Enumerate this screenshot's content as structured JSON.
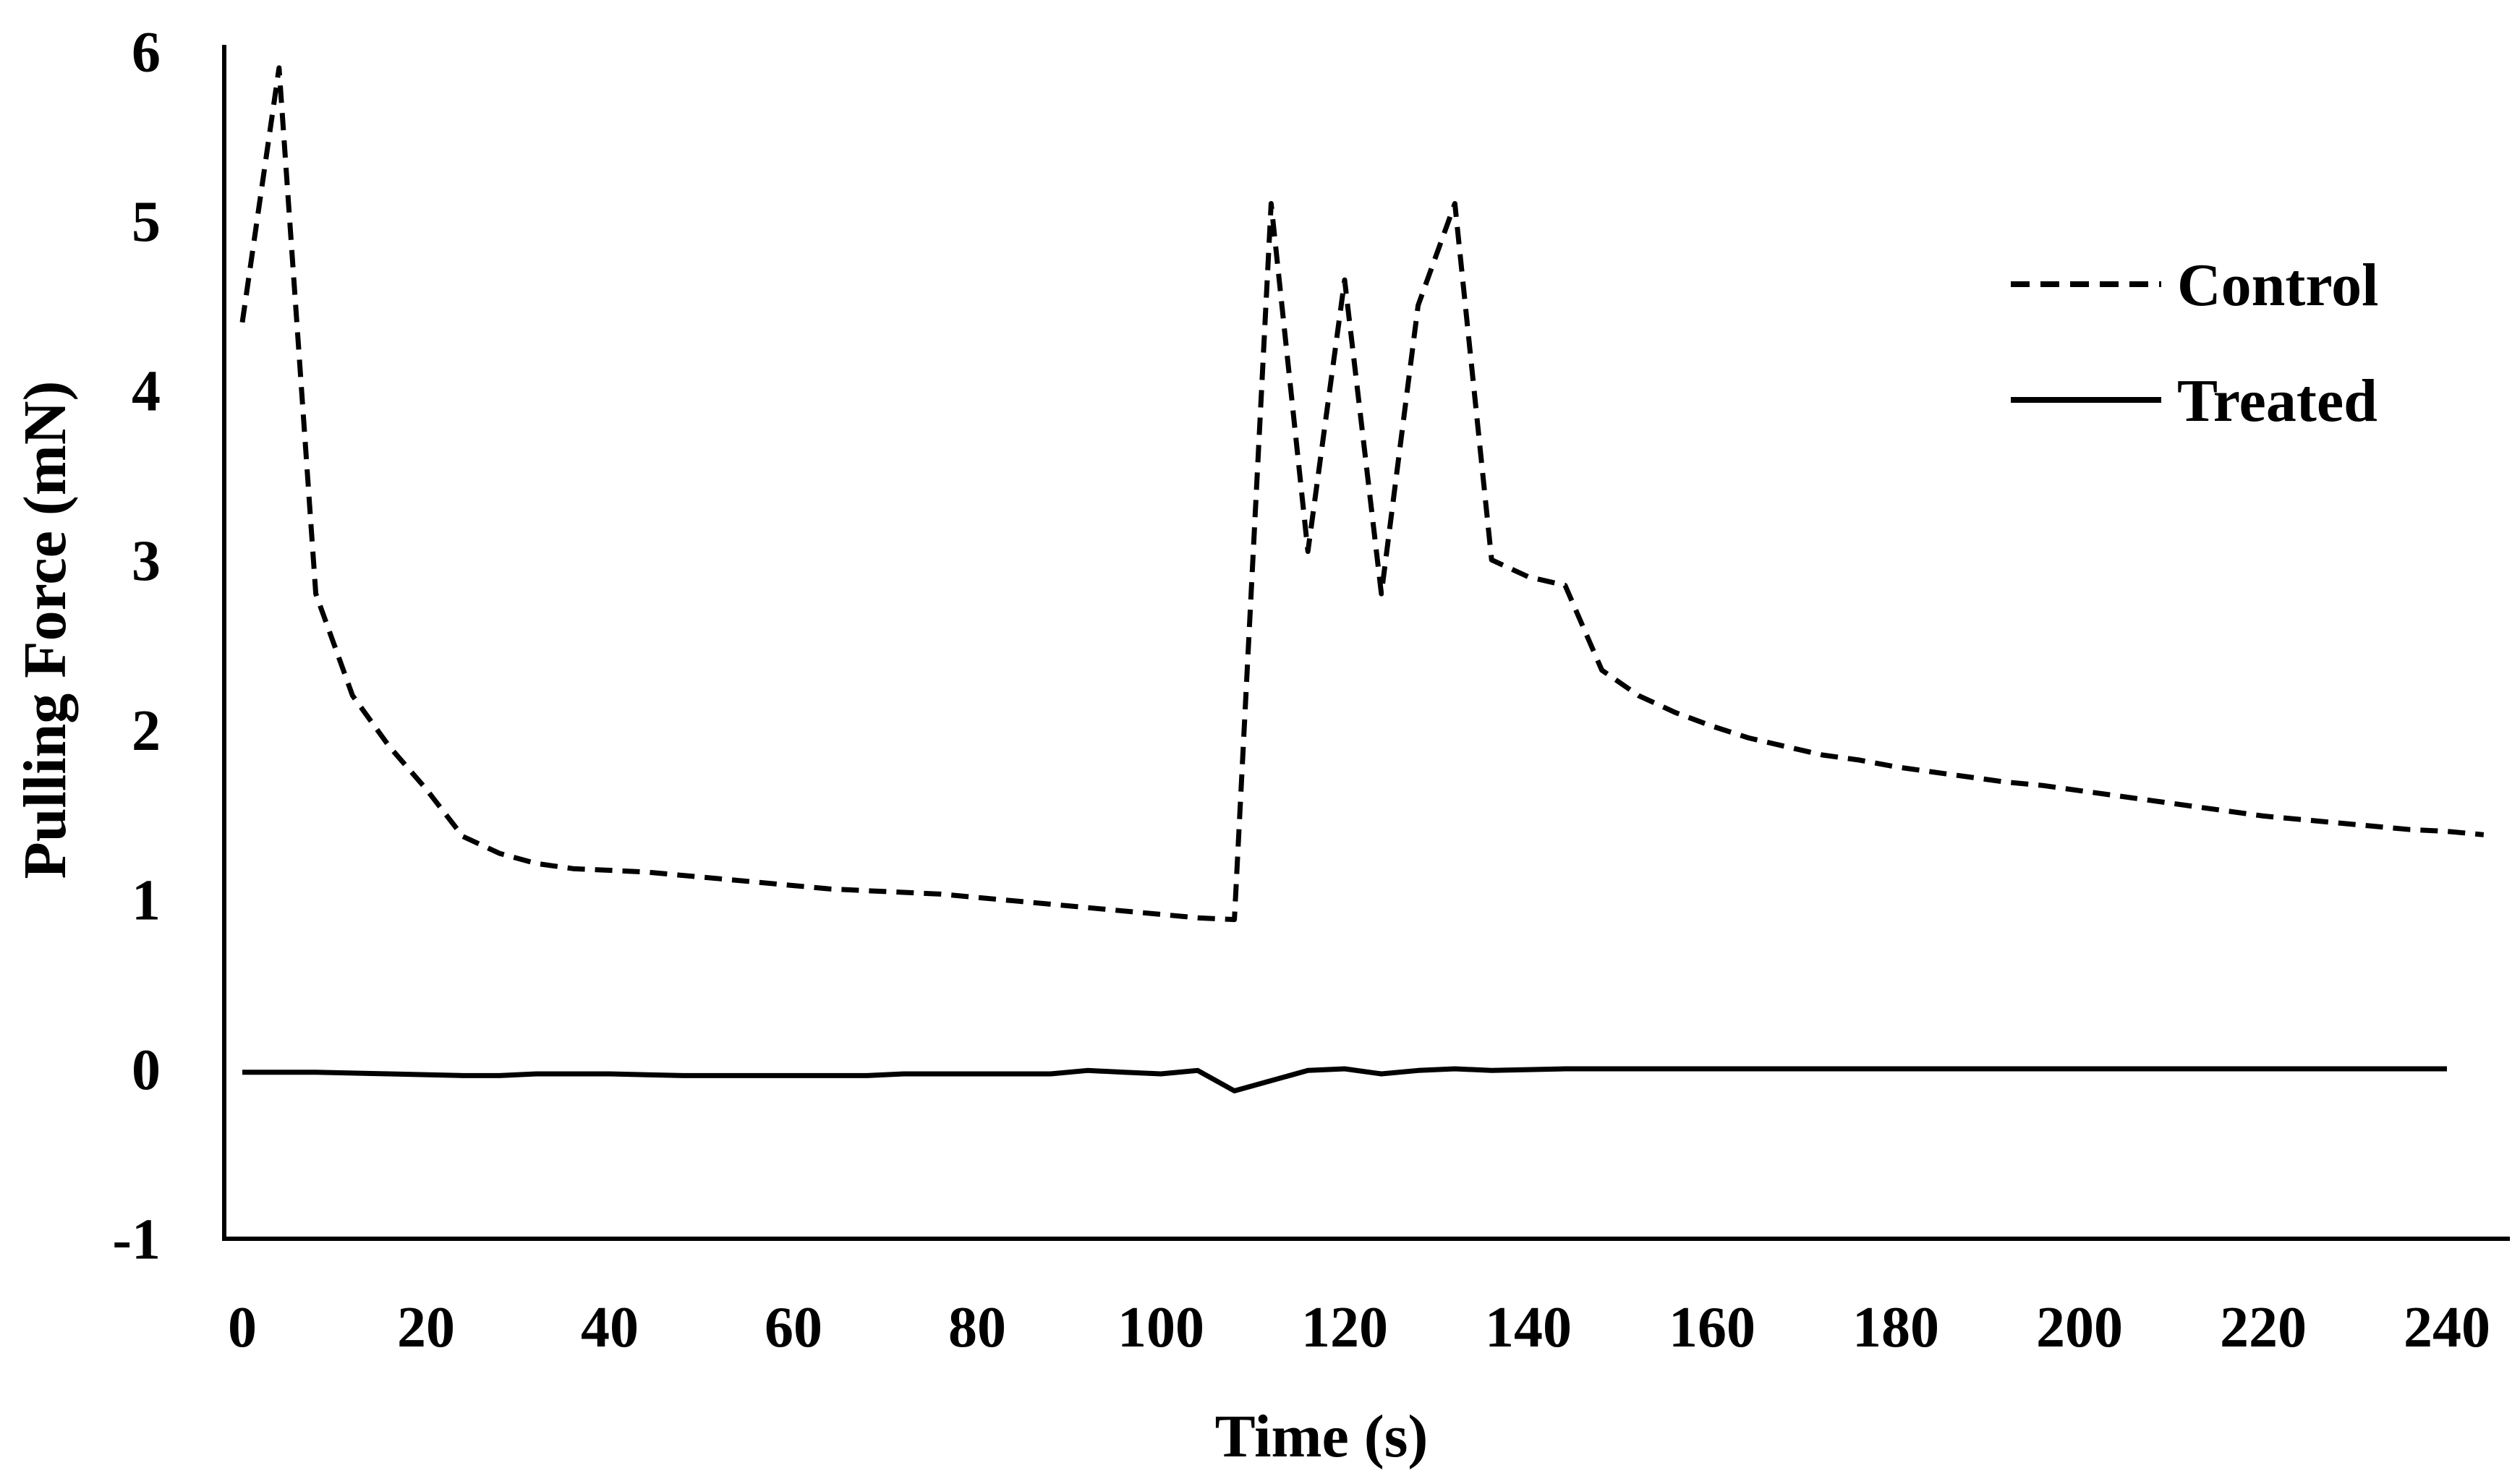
{
  "chart_data": {
    "type": "line",
    "title": "",
    "xlabel": "Time (s)",
    "ylabel": "Pulling Force (mN)",
    "xlim": [
      -4,
      245
    ],
    "ylim": [
      -1,
      6
    ],
    "xticks": [
      0,
      20,
      40,
      60,
      80,
      100,
      120,
      140,
      160,
      180,
      200,
      220,
      240
    ],
    "yticks": [
      -1,
      0,
      1,
      2,
      3,
      4,
      5,
      6
    ],
    "grid": false,
    "legend_position": "top-right",
    "series": [
      {
        "name": "Control",
        "style": "dashed",
        "color": "#000000",
        "points": [
          [
            0,
            4.4
          ],
          [
            4,
            5.9
          ],
          [
            8,
            2.8
          ],
          [
            12,
            2.2
          ],
          [
            16,
            1.9
          ],
          [
            20,
            1.65
          ],
          [
            24,
            1.37
          ],
          [
            28,
            1.27
          ],
          [
            32,
            1.21
          ],
          [
            36,
            1.18
          ],
          [
            40,
            1.17
          ],
          [
            44,
            1.16
          ],
          [
            48,
            1.14
          ],
          [
            52,
            1.12
          ],
          [
            56,
            1.1
          ],
          [
            60,
            1.08
          ],
          [
            64,
            1.06
          ],
          [
            68,
            1.05
          ],
          [
            72,
            1.04
          ],
          [
            76,
            1.03
          ],
          [
            80,
            1.01
          ],
          [
            84,
            0.99
          ],
          [
            88,
            0.97
          ],
          [
            92,
            0.95
          ],
          [
            96,
            0.93
          ],
          [
            100,
            0.91
          ],
          [
            104,
            0.89
          ],
          [
            108,
            0.88
          ],
          [
            112,
            5.1
          ],
          [
            116,
            3.05
          ],
          [
            120,
            4.65
          ],
          [
            124,
            2.8
          ],
          [
            128,
            4.5
          ],
          [
            132,
            5.1
          ],
          [
            136,
            3.0
          ],
          [
            140,
            2.9
          ],
          [
            144,
            2.85
          ],
          [
            148,
            2.35
          ],
          [
            152,
            2.2
          ],
          [
            156,
            2.1
          ],
          [
            160,
            2.02
          ],
          [
            164,
            1.95
          ],
          [
            168,
            1.9
          ],
          [
            172,
            1.85
          ],
          [
            176,
            1.82
          ],
          [
            180,
            1.78
          ],
          [
            184,
            1.75
          ],
          [
            188,
            1.72
          ],
          [
            192,
            1.69
          ],
          [
            196,
            1.67
          ],
          [
            200,
            1.64
          ],
          [
            204,
            1.61
          ],
          [
            208,
            1.58
          ],
          [
            212,
            1.55
          ],
          [
            216,
            1.52
          ],
          [
            220,
            1.49
          ],
          [
            224,
            1.47
          ],
          [
            228,
            1.45
          ],
          [
            232,
            1.43
          ],
          [
            236,
            1.41
          ],
          [
            240,
            1.4
          ],
          [
            244,
            1.38
          ]
        ]
      },
      {
        "name": "Treated",
        "style": "solid",
        "color": "#000000",
        "points": [
          [
            0,
            -0.02
          ],
          [
            8,
            -0.02
          ],
          [
            16,
            -0.03
          ],
          [
            24,
            -0.04
          ],
          [
            28,
            -0.04
          ],
          [
            32,
            -0.03
          ],
          [
            40,
            -0.03
          ],
          [
            48,
            -0.04
          ],
          [
            56,
            -0.04
          ],
          [
            64,
            -0.04
          ],
          [
            68,
            -0.04
          ],
          [
            72,
            -0.03
          ],
          [
            80,
            -0.03
          ],
          [
            88,
            -0.03
          ],
          [
            92,
            -0.01
          ],
          [
            96,
            -0.02
          ],
          [
            100,
            -0.03
          ],
          [
            104,
            -0.01
          ],
          [
            108,
            -0.13
          ],
          [
            112,
            -0.07
          ],
          [
            116,
            -0.01
          ],
          [
            120,
            0.0
          ],
          [
            124,
            -0.03
          ],
          [
            128,
            -0.01
          ],
          [
            132,
            0.0
          ],
          [
            136,
            -0.01
          ],
          [
            144,
            0.0
          ],
          [
            152,
            0.0
          ],
          [
            160,
            0.0
          ],
          [
            168,
            0.0
          ],
          [
            176,
            0.0
          ],
          [
            184,
            0.0
          ],
          [
            192,
            0.0
          ],
          [
            200,
            0.0
          ],
          [
            208,
            0.0
          ],
          [
            216,
            0.0
          ],
          [
            224,
            0.0
          ],
          [
            232,
            0.0
          ],
          [
            240,
            0.0
          ]
        ]
      }
    ]
  }
}
